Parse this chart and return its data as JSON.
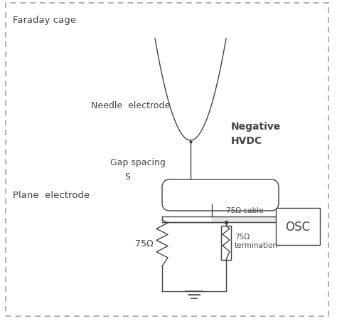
{
  "bg_color": "#ffffff",
  "line_color": "#444444",
  "figsize": [
    4.74,
    4.56
  ],
  "dpi": 100,
  "labels": {
    "faraday_cage": "Faraday cage",
    "needle_electrode": "Needle  electrode",
    "negative_hvdc_line1": "Negative",
    "negative_hvdc_line2": "HVDC",
    "gap_spacing_line1": "Gap spacing",
    "gap_spacing_line2": "S",
    "plane_electrode": "Plane  electrode",
    "cable_label": "75Ω cable",
    "resistor1_label": "75Ω",
    "resistor2_label": "75Ω",
    "termination_label": "termination",
    "osc_label": "OSC"
  }
}
